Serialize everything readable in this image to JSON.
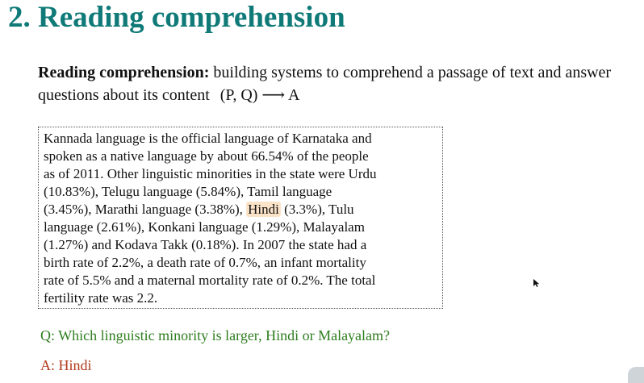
{
  "slide": {
    "title": "2. Reading comprehension",
    "title_color": "#0f7a78"
  },
  "definition": {
    "term": "Reading comprehension:",
    "text": "building systems to comprehend a passage of text and answer questions about its content",
    "formula": "(P, Q) ⟶ A"
  },
  "passage": {
    "lines": [
      "Kannada language is the official language of Karnataka and",
      "spoken as a native language by about 66.54% of the people",
      "as of 2011. Other linguistic minorities in the state were Urdu",
      "(10.83%), Telugu language (5.84%), Tamil language",
      "(3.45%), Marathi language (3.38%), ",
      "Hindi",
      " (3.3%), Tulu",
      "language (2.61%), Konkani language (1.29%), Malayalam",
      "(1.27%) and Kodava Takk (0.18%). In 2007 the state had a",
      "birth rate of 2.2%, a death rate of 0.7%, an infant mortality",
      "rate of 5.5% and a maternal mortality rate of 0.2%. The total",
      "fertility rate was 2.2."
    ],
    "highlight_color": "#fbe3c8"
  },
  "question": {
    "text": "Q: Which linguistic minority is larger, Hindi or Malayalam?",
    "color": "#2f7d1f"
  },
  "answer": {
    "text": "A: Hindi",
    "color": "#b23a1c"
  },
  "icons": {
    "cursor": "mouse-pointer-icon"
  }
}
